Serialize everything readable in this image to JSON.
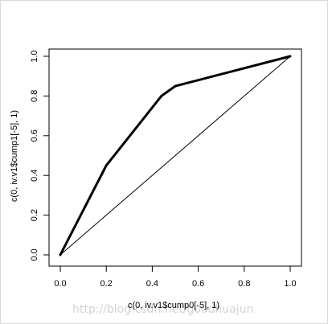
{
  "chart_data": {
    "type": "line",
    "xlabel": "c(0, iv.v1$cump0[-5], 1)",
    "ylabel": "c(0, iv.v1$cump1[-5], 1)",
    "xlim": [
      0,
      1
    ],
    "ylim": [
      0,
      1
    ],
    "x_ticks": [
      "0.0",
      "0.2",
      "0.4",
      "0.6",
      "0.8",
      "1.0"
    ],
    "y_ticks": [
      "0.0",
      "0.2",
      "0.4",
      "0.6",
      "0.8",
      "1.0"
    ],
    "grid": false,
    "series": [
      {
        "style": "thick",
        "x": [
          0,
          0.2,
          0.44,
          0.5,
          1.0
        ],
        "y": [
          0,
          0.45,
          0.8,
          0.85,
          1.0
        ]
      },
      {
        "style": "thin",
        "x": [
          0,
          1
        ],
        "y": [
          0,
          1
        ]
      }
    ]
  },
  "watermark": "http://blog.csdn.net/goodhuajun"
}
